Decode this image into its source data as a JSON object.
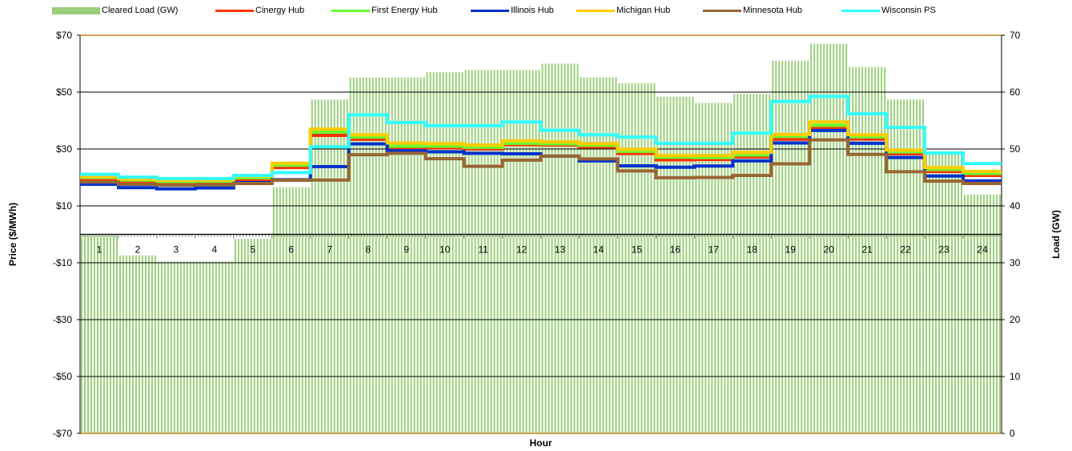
{
  "chart_data": {
    "type": "line",
    "xlabel": "Hour",
    "ylabel": "Price ($/MWh)",
    "y2label": "Load (GW)",
    "ylim": [
      -70,
      70
    ],
    "y2lim": [
      0,
      70
    ],
    "yticks": [
      "$70",
      "$50",
      "$30",
      "$10",
      "-$10",
      "-$30",
      "-$50",
      "-$70"
    ],
    "y2ticks": [
      "70",
      "60",
      "50",
      "40",
      "30",
      "20",
      "10",
      "0"
    ],
    "categories": [
      "1",
      "2",
      "3",
      "4",
      "5",
      "6",
      "7",
      "8",
      "9",
      "10",
      "11",
      "12",
      "13",
      "14",
      "15",
      "16",
      "17",
      "18",
      "19",
      "20",
      "21",
      "22",
      "23",
      "24"
    ],
    "intervals_per_hour": 12,
    "grid": true,
    "legend_position": "top",
    "bar_series": {
      "name": "Cleared Load (GW)",
      "color": "#9bcf7c",
      "values": [
        34.8,
        31.3,
        30.2,
        30.2,
        34.2,
        43.3,
        58.7,
        62.6,
        62.6,
        63.5,
        63.9,
        63.9,
        65,
        62.6,
        61.6,
        59.2,
        58.1,
        59.7,
        65.5,
        68.5,
        64.4,
        58.7,
        49.2,
        42
      ]
    },
    "series": [
      {
        "name": "Cinergy Hub",
        "color": "#ff3300",
        "values": [
          19.3,
          18.7,
          18.2,
          18.2,
          19.2,
          23.5,
          34.8,
          33.4,
          30.2,
          30.4,
          30.0,
          31.5,
          31.4,
          30.7,
          28.4,
          26.2,
          26.3,
          27.2,
          33.4,
          37.6,
          33.5,
          28.3,
          22.1,
          20.7
        ]
      },
      {
        "name": "First Energy Hub",
        "color": "#66ff33",
        "values": [
          20.0,
          19.1,
          18.6,
          18.7,
          19.9,
          24.3,
          35.9,
          34.2,
          31.0,
          31.0,
          30.6,
          32.0,
          31.8,
          31.3,
          29.2,
          27.1,
          27.0,
          27.9,
          34.4,
          38.3,
          34.3,
          29.0,
          22.8,
          21.4
        ]
      },
      {
        "name": "Illinois Hub",
        "color": "#0033cc",
        "values": [
          17.6,
          16.4,
          16.0,
          16.3,
          18.2,
          19.2,
          23.8,
          31.8,
          29.4,
          29.0,
          28.5,
          28.3,
          27.5,
          25.8,
          24.1,
          23.6,
          24.0,
          25.8,
          32.1,
          36.5,
          32.0,
          27.0,
          20.5,
          18.8
        ]
      },
      {
        "name": "Michigan Hub",
        "color": "#ffcc00",
        "values": [
          20.3,
          19.4,
          19.0,
          19.1,
          20.5,
          25.0,
          37.0,
          35.0,
          32.1,
          31.9,
          31.4,
          32.9,
          32.5,
          31.9,
          29.9,
          27.7,
          27.7,
          28.8,
          35.1,
          39.5,
          35.0,
          29.6,
          23.5,
          22.1
        ]
      },
      {
        "name": "Minnesota Hub",
        "color": "#996633",
        "values": [
          18.4,
          17.6,
          17.3,
          17.4,
          17.9,
          19.0,
          19.1,
          28.0,
          28.5,
          26.6,
          23.9,
          26.1,
          27.5,
          26.5,
          22.3,
          19.9,
          20.0,
          20.7,
          24.8,
          33.2,
          28.1,
          22.0,
          18.7,
          17.9
        ]
      },
      {
        "name": "Wisconsin PS",
        "color": "#33ffff",
        "values": [
          21.1,
          20.1,
          19.6,
          19.6,
          20.7,
          21.7,
          30.8,
          42.0,
          39.3,
          38.2,
          38.2,
          39.5,
          36.6,
          35.0,
          34.2,
          32.0,
          32.0,
          35.6,
          46.7,
          48.5,
          42.4,
          37.6,
          28.6,
          24.9
        ]
      }
    ]
  }
}
